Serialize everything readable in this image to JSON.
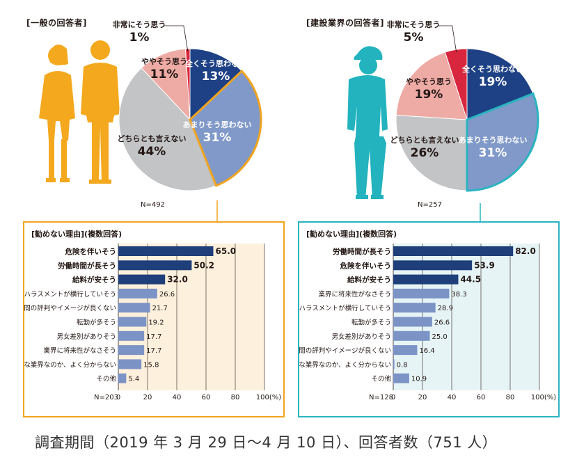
{
  "footer": "調査期間（2019 年 3 月 29 日〜4 月 10 日）、回答者数（751 人）",
  "colors": {
    "left_accent": "#f1a41f",
    "right_accent": "#2ab4c0",
    "dark_bar": "#1f3f7a",
    "light_bar": "#7c93c6",
    "left_bg": "#fdf0dc",
    "right_bg": "#e6f4f6",
    "pie_dark_blue": "#1e4185",
    "pie_mid_blue": "#8099c9",
    "pie_gray": "#c3c4c6",
    "pie_pink": "#eeaaa4",
    "pie_red": "#d7263d",
    "left_figure": "#f4a81d",
    "right_figure": "#22b3be"
  },
  "chart_data": [
    {
      "type": "pie",
      "title": "[一般の回答者]",
      "n_label": "N=492",
      "slices": [
        {
          "label": "全くそう思わない",
          "value": 13,
          "pct": "13%"
        },
        {
          "label": "あまりそう思わない",
          "value": 31,
          "pct": "31%"
        },
        {
          "label": "どちらとも言えない",
          "value": 44,
          "pct": "44%"
        },
        {
          "label": "ややそう思う",
          "value": 11,
          "pct": "11%"
        },
        {
          "label": "非常にそう思う",
          "value": 1,
          "pct": "1%"
        }
      ]
    },
    {
      "type": "pie",
      "title": "[建設業界の回答者]",
      "n_label": "N=257",
      "slices": [
        {
          "label": "全くそう思わない",
          "value": 19,
          "pct": "19%"
        },
        {
          "label": "あまりそう思わない",
          "value": 31,
          "pct": "31%"
        },
        {
          "label": "どちらとも言えない",
          "value": 26,
          "pct": "26%"
        },
        {
          "label": "ややそう思う",
          "value": 19,
          "pct": "19%"
        },
        {
          "label": "非常にそう思う",
          "value": 5,
          "pct": "5%"
        }
      ]
    },
    {
      "type": "bar",
      "title": "[勧めない理由](複数回答)",
      "n_label": "N=203",
      "x_ticks": [
        "0",
        "20",
        "40",
        "60",
        "80",
        "100(%)"
      ],
      "xlim": [
        0,
        100
      ],
      "categories": [
        "危険を伴いそう",
        "労働時間が長そう",
        "給料が安そう",
        "ハラスメントが横行していそう",
        "世間の評判やイメージが良くない",
        "転勤が多そう",
        "男女差別がありそう",
        "業界に将来性がなさそう",
        "どのような業界なのか、よく分からない",
        "その他"
      ],
      "values": [
        65.0,
        50.2,
        32.0,
        26.6,
        21.7,
        19.2,
        17.7,
        17.7,
        15.8,
        5.4
      ],
      "value_labels": [
        "65.0",
        "50.2",
        "32.0",
        "26.6",
        "21.7",
        "19.2",
        "17.7",
        "17.7",
        "15.8",
        "5.4"
      ],
      "highlight_count": 3
    },
    {
      "type": "bar",
      "title": "[勧めない理由](複数回答)",
      "n_label": "N=128",
      "x_ticks": [
        "0",
        "20",
        "40",
        "60",
        "80",
        "100(%)"
      ],
      "xlim": [
        0,
        100
      ],
      "categories": [
        "労働時間が長そう",
        "危険を伴いそう",
        "給料が安そう",
        "業界に将来性がなさそう",
        "ハラスメントが横行していそう",
        "転勤が多そう",
        "男女差別がありそう",
        "世間の評判やイメージが良くない",
        "どのような業界なのか、よく分からない",
        "その他"
      ],
      "values": [
        82.0,
        53.9,
        44.5,
        38.3,
        28.9,
        26.6,
        25.0,
        16.4,
        0.8,
        10.9
      ],
      "value_labels": [
        "82.0",
        "53.9",
        "44.5",
        "38.3",
        "28.9",
        "26.6",
        "25.0",
        "16.4",
        "0.8",
        "10.9"
      ],
      "highlight_count": 3
    }
  ]
}
